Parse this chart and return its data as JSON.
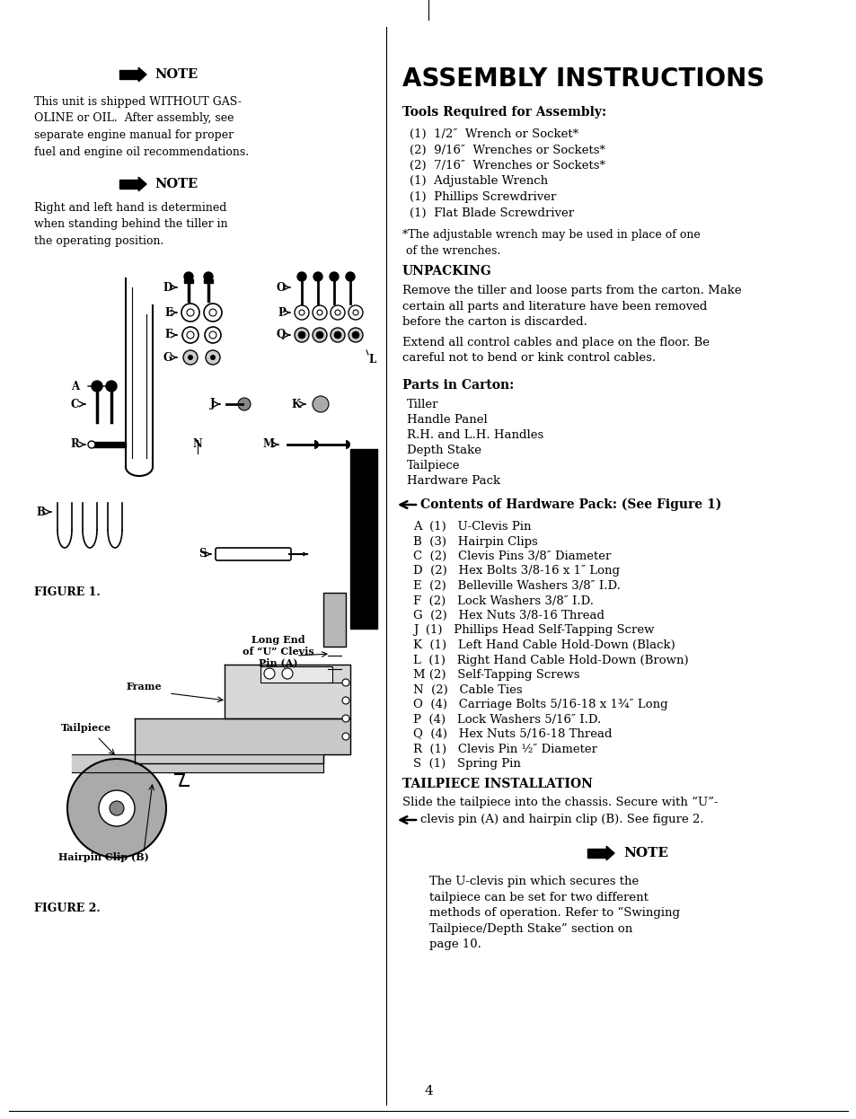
{
  "bg_color": "#ffffff",
  "page_number": "4",
  "left_col": {
    "note1_header": "NOTE",
    "note1_body": "This unit is shipped WITHOUT GAS-\nOLINE or OIL.  After assembly, see\nseparate engine manual for proper\nfuel and engine oil recommendations.",
    "note2_header": "NOTE",
    "note2_body": "Right and left hand is determined\nwhen standing behind the tiller in\nthe operating position.",
    "figure1_label": "FIGURE 1.",
    "figure2_label": "FIGURE 2.",
    "fig2_ann_longend": "Long End\nof “U” Clevis\nPin (A)",
    "fig2_ann_frame": "Frame",
    "fig2_ann_tailpiece": "Tailpiece",
    "fig2_ann_hairpin": "Hairpin Clip (B)"
  },
  "right_col": {
    "main_title": "ASSEMBLY INSTRUCTIONS",
    "tools_header": "Tools Required for Assembly:",
    "tools_list": [
      "(1)  1/2″  Wrench or Socket*",
      "(2)  9/16″  Wrenches or Sockets*",
      "(2)  7/16″  Wrenches or Sockets*",
      "(1)  Adjustable Wrench",
      "(1)  Phillips Screwdriver",
      "(1)  Flat Blade Screwdriver"
    ],
    "tools_note": "*The adjustable wrench may be used in place of one\n of the wrenches.",
    "unpacking_header": "UNPACKING",
    "unpacking_body1": "Remove the tiller and loose parts from the carton. Make\ncertain all parts and literature have been removed\nbefore the carton is discarded.",
    "unpacking_body2": "Extend all control cables and place on the floor. Be\ncareful not to bend or kink control cables.",
    "parts_header": "Parts in Carton:",
    "parts_list": [
      "Tiller",
      "Handle Panel",
      "R.H. and L.H. Handles",
      "Depth Stake",
      "Tailpiece",
      "Hardware Pack"
    ],
    "hardware_header": "Contents of Hardware Pack: (See Figure 1)",
    "hardware_list": [
      "A  (1)   U-Clevis Pin",
      "B  (3)   Hairpin Clips",
      "C  (2)   Clevis Pins 3/8″ Diameter",
      "D  (2)   Hex Bolts 3/8-16 x 1″ Long",
      "E  (2)   Belleville Washers 3/8″ I.D.",
      "F  (2)   Lock Washers 3/8″ I.D.",
      "G  (2)   Hex Nuts 3/8-16 Thread",
      "J  (1)   Phillips Head Self-Tapping Screw",
      "K  (1)   Left Hand Cable Hold-Down (Black)",
      "L  (1)   Right Hand Cable Hold-Down (Brown)",
      "M (2)   Self-Tapping Screws",
      "N  (2)   Cable Ties",
      "O  (4)   Carriage Bolts 5/16-18 x 1¾″ Long",
      "P  (4)   Lock Washers 5/16″ I.D.",
      "Q  (4)   Hex Nuts 5/16-18 Thread",
      "R  (1)   Clevis Pin ½″ Diameter",
      "S  (1)   Spring Pin"
    ],
    "tailpiece_header": "TAILPIECE INSTALLATION",
    "tailpiece_body1": "Slide the tailpiece into the chassis. Secure with “U”-",
    "tailpiece_body2": "clevis pin (A) and hairpin clip (B). See figure 2.",
    "note3_header": "NOTE",
    "note3_body": "The U-clevis pin which secures the\ntailpiece can be set for two different\nmethods of operation. Refer to “Swinging\nTailpiece/Depth Stake” section on\npage 10."
  }
}
